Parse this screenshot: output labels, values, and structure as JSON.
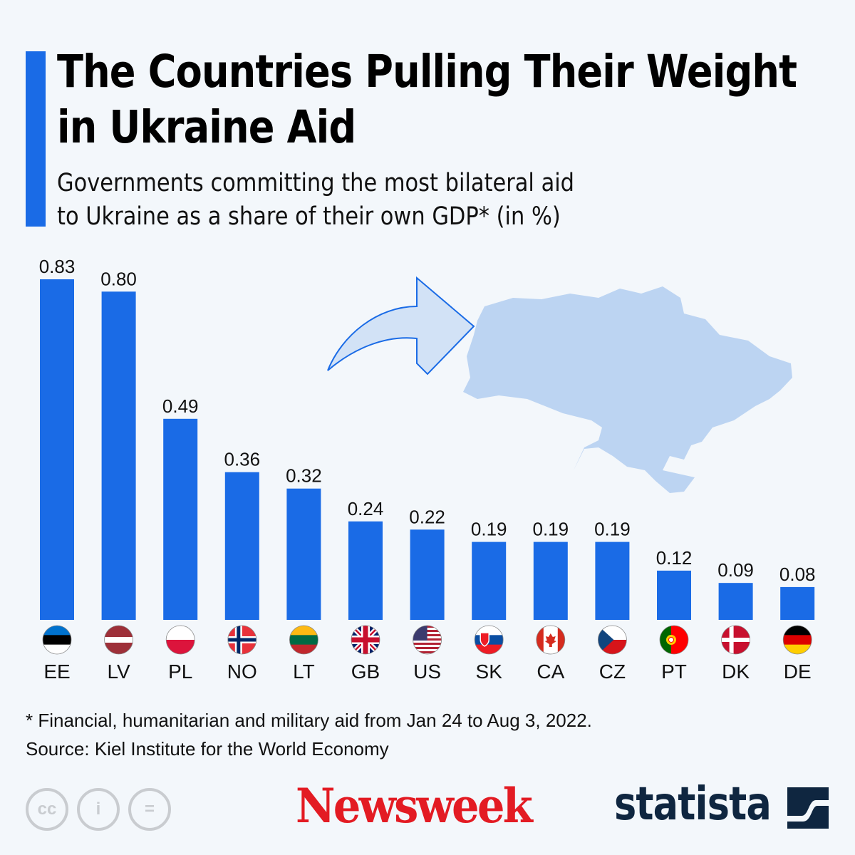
{
  "title_line1": "The Countries Pulling Their Weight",
  "title_line2": "in Ukraine Aid",
  "subtitle_line1": "Governments committing the most bilateral aid",
  "subtitle_line2": "to Ukraine as a share of their own GDP* (in %)",
  "footnote": "* Financial, humanitarian and military aid from Jan 24 to Aug 3, 2022.",
  "source": "Source: Kiel Institute for the World Economy",
  "logos": {
    "cc": "cc",
    "newsweek": "Newsweek",
    "statista": "statista"
  },
  "colors": {
    "bar": "#1a6be6",
    "accent": "#1a6be6",
    "map": "#bcd4f2",
    "background": "#f3f7fb"
  },
  "chart_data": {
    "type": "bar",
    "categories": [
      "EE",
      "LV",
      "PL",
      "NO",
      "LT",
      "GB",
      "US",
      "SK",
      "CA",
      "CZ",
      "PT",
      "DK",
      "DE"
    ],
    "values": [
      0.83,
      0.8,
      0.49,
      0.36,
      0.32,
      0.24,
      0.22,
      0.19,
      0.19,
      0.19,
      0.12,
      0.09,
      0.08
    ],
    "value_labels": [
      "0.83",
      "0.80",
      "0.49",
      "0.36",
      "0.32",
      "0.24",
      "0.22",
      "0.19",
      "0.19",
      "0.19",
      "0.12",
      "0.09",
      "0.08"
    ],
    "ylim": [
      0,
      0.83
    ],
    "grid": false,
    "legend": "none",
    "flags": [
      "estonia-flag",
      "latvia-flag",
      "poland-flag",
      "norway-flag",
      "lithuania-flag",
      "uk-flag",
      "us-flag",
      "slovakia-flag",
      "canada-flag",
      "czechia-flag",
      "portugal-flag",
      "denmark-flag",
      "germany-flag"
    ]
  }
}
